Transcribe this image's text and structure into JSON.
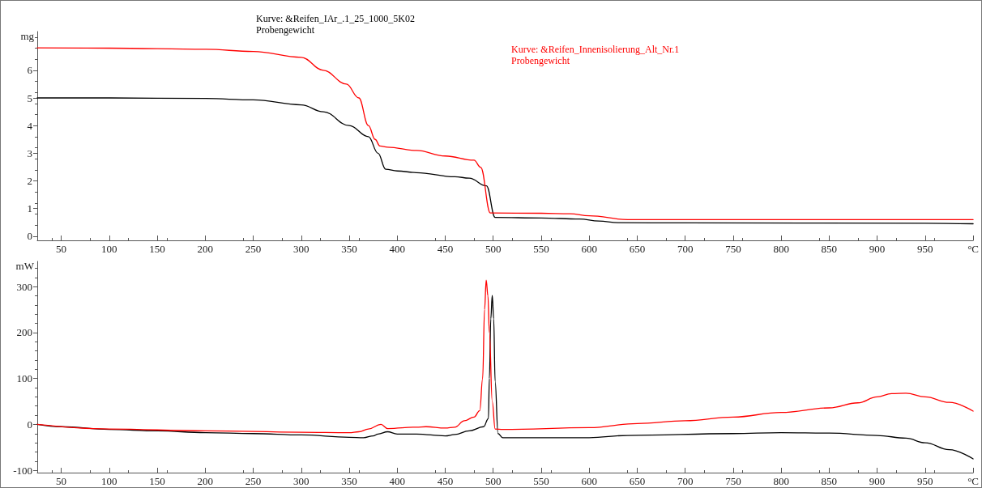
{
  "chart_data": [
    {
      "type": "line",
      "ylabel": "mg",
      "xlim": [
        25,
        1000
      ],
      "xticks": [
        50,
        100,
        150,
        200,
        250,
        300,
        350,
        400,
        450,
        500,
        550,
        600,
        650,
        700,
        750,
        800,
        850,
        900,
        950,
        {
          "value": 1000,
          "label": "°C"
        }
      ],
      "ylim": [
        -0.15,
        7.4
      ],
      "yticks": [
        0,
        1,
        2,
        3,
        4,
        5,
        6
      ],
      "grid": false,
      "legend": "top",
      "marker": "none",
      "line_style": "solid",
      "series": [
        {
          "name": "Kurve: &Reifen_IAr_.1_25_1000_5K02\nProbengewicht",
          "color": "#000000",
          "x": [
            25,
            100,
            200,
            250,
            300,
            323,
            350,
            370,
            380,
            388,
            400,
            420,
            460,
            475,
            493,
            502,
            550,
            590,
            610,
            630,
            700,
            950,
            1000
          ],
          "values": [
            5.0,
            5.0,
            4.98,
            4.93,
            4.75,
            4.5,
            4.0,
            3.6,
            3.0,
            2.42,
            2.36,
            2.3,
            2.15,
            2.1,
            1.82,
            0.68,
            0.66,
            0.62,
            0.55,
            0.49,
            0.48,
            0.47,
            0.45
          ]
        },
        {
          "name": "Kurve: &Reifen_Innenisolierung_Alt_Nr.1\nProbengewicht",
          "color": "#ff0000",
          "x": [
            25,
            100,
            200,
            250,
            300,
            323,
            347,
            360,
            370,
            377,
            382,
            390,
            420,
            450,
            480,
            487,
            497,
            550,
            580,
            600,
            640,
            700,
            1000
          ],
          "values": [
            6.81,
            6.8,
            6.76,
            6.68,
            6.47,
            6.0,
            5.5,
            5.0,
            4.0,
            3.5,
            3.26,
            3.22,
            3.1,
            2.9,
            2.75,
            2.49,
            0.84,
            0.83,
            0.81,
            0.74,
            0.6,
            0.6,
            0.6
          ]
        }
      ]
    },
    {
      "type": "line",
      "ylabel": "mW",
      "xlim": [
        25,
        1000
      ],
      "xticks": [
        50,
        100,
        150,
        200,
        250,
        300,
        350,
        400,
        450,
        500,
        550,
        600,
        650,
        700,
        750,
        800,
        850,
        900,
        950,
        {
          "value": 1000,
          "label": "°C"
        }
      ],
      "ylim": [
        -105,
        355
      ],
      "yticks": [
        -100,
        0,
        100,
        200,
        300
      ],
      "grid": false,
      "marker": "none",
      "line_style": "solid",
      "series": [
        {
          "color": "#000000",
          "x": [
            25,
            50,
            100,
            150,
            200,
            250,
            300,
            350,
            365,
            375,
            380,
            390,
            400,
            420,
            450,
            460,
            475,
            490,
            495,
            496,
            497.5,
            499,
            500.5,
            502,
            505,
            510,
            600,
            640,
            750,
            800,
            850,
            900,
            930,
            950,
            975,
            1000
          ],
          "values": [
            0,
            -5,
            -11,
            -14,
            -18,
            -20,
            -23,
            -28,
            -29,
            -25,
            -21,
            -16,
            -21,
            -21,
            -25,
            -22,
            -14,
            -5,
            13,
            100,
            230,
            281,
            230,
            94,
            -20,
            -29,
            -29,
            -24,
            -20,
            -18,
            -19,
            -24,
            -30,
            -40,
            -55,
            -75
          ]
        },
        {
          "color": "#ff0000",
          "x": [
            25,
            100,
            200,
            300,
            350,
            360,
            370,
            383,
            390,
            420,
            430,
            450,
            460,
            470,
            480,
            486,
            489,
            491,
            492.7,
            494.5,
            496,
            499,
            502,
            510,
            600,
            650,
            700,
            750,
            800,
            850,
            880,
            900,
            915,
            930,
            950,
            975,
            1000
          ],
          "values": [
            0,
            -10,
            -14,
            -17,
            -18,
            -16,
            -10,
            0,
            -9,
            -6,
            -5,
            -8,
            -6,
            8,
            16,
            30,
            100,
            250,
            314,
            280,
            200,
            50,
            -10,
            -11,
            -7,
            2,
            8,
            16,
            26,
            36,
            47,
            60,
            67,
            68,
            60,
            48,
            29
          ]
        }
      ]
    }
  ]
}
